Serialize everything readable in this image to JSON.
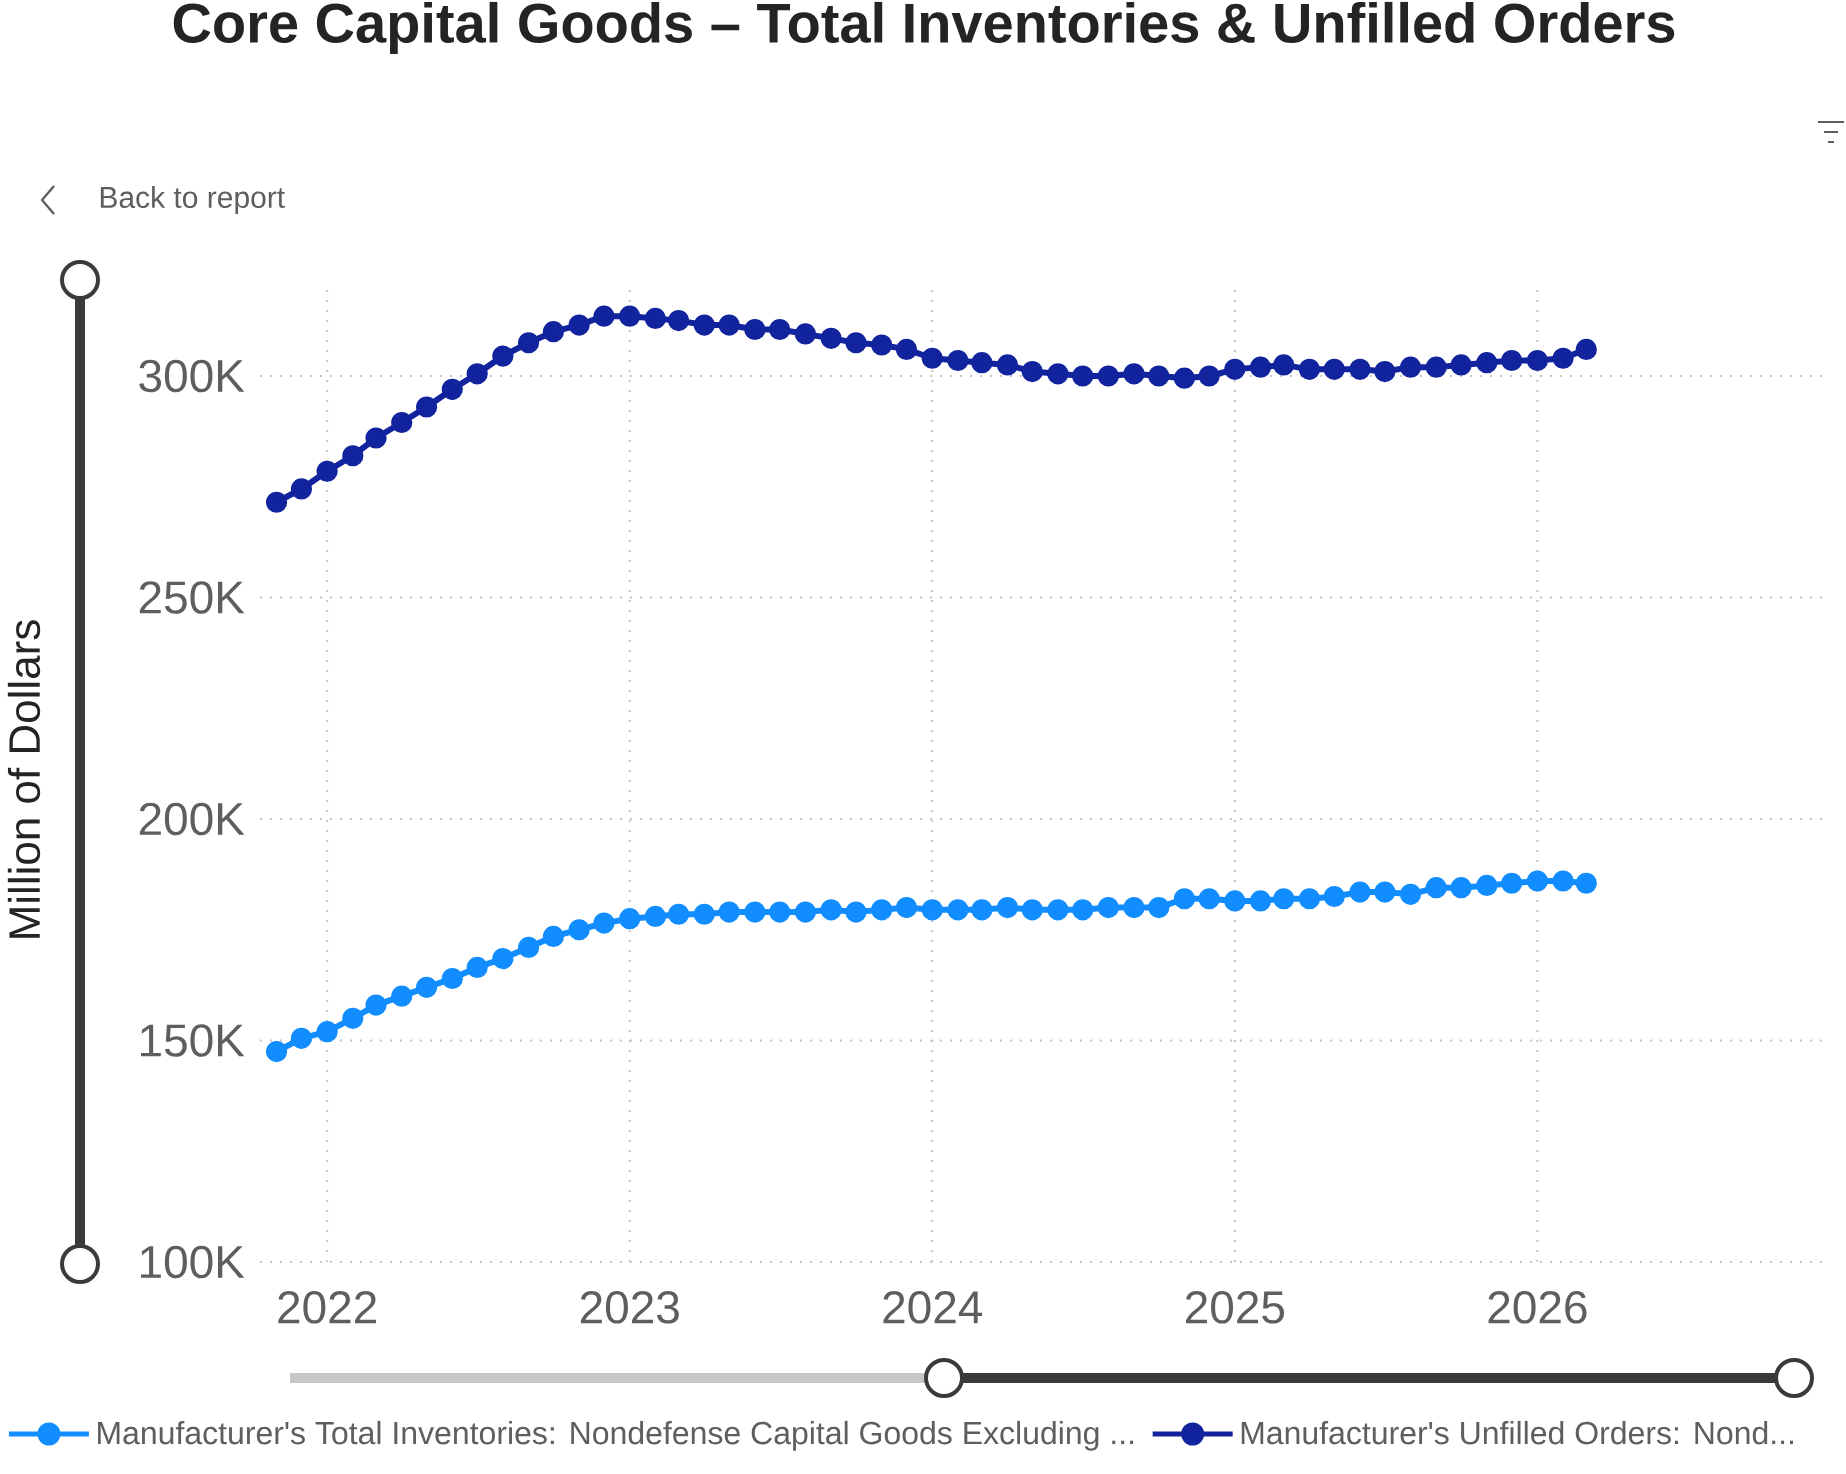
{
  "chart_data": {
    "type": "line",
    "title": "Core Capital Goods – Total Inventories & Unfilled Orders",
    "ylabel": "Million of Dollars",
    "annotations": [
      "Back to report"
    ],
    "x": [
      "2021-11",
      "2021-12",
      "2022-01",
      "2022-02",
      "2022-03",
      "2022-04",
      "2022-05",
      "2022-06",
      "2022-07",
      "2022-08",
      "2022-09",
      "2022-10",
      "2022-11",
      "2022-12",
      "2023-01",
      "2023-02",
      "2023-03",
      "2023-04",
      "2023-05",
      "2023-06",
      "2023-07",
      "2023-08",
      "2023-09",
      "2023-10",
      "2023-11",
      "2023-12",
      "2024-01",
      "2024-02",
      "2024-03",
      "2024-04",
      "2024-05",
      "2024-06",
      "2024-07",
      "2024-08",
      "2024-09",
      "2024-10",
      "2024-11",
      "2024-12",
      "2025-01",
      "2025-02",
      "2025-03",
      "2025-04",
      "2025-05",
      "2025-06",
      "2025-07",
      "2025-08",
      "2025-09",
      "2025-10",
      "2025-11",
      "2025-12",
      "2026-01",
      "2026-02",
      "2026-03"
    ],
    "xlim": [
      "2021-10-12",
      "2026-12-20"
    ],
    "xticks": [
      "2022",
      "2023",
      "2024",
      "2025",
      "2026"
    ],
    "ylim": [
      100000,
      320000
    ],
    "yticks": [
      {
        "value": 100000,
        "label": "100K"
      },
      {
        "value": 150000,
        "label": "150K"
      },
      {
        "value": 200000,
        "label": "200K"
      },
      {
        "value": 250000,
        "label": "250K"
      },
      {
        "value": 300000,
        "label": "300K"
      }
    ],
    "grid": true,
    "legend": "bottom",
    "marker": "circle",
    "line_style": "solid",
    "series": [
      {
        "name": "Manufacturer's Total Inventories: Nondefense Capital Goods Excluding ...",
        "color": "#118dff",
        "values": [
          147500,
          150500,
          152000,
          155000,
          158000,
          160000,
          162000,
          164000,
          166500,
          168500,
          171000,
          173500,
          175000,
          176500,
          177500,
          178000,
          178500,
          178500,
          179000,
          179000,
          179000,
          179000,
          179500,
          179000,
          179500,
          180000,
          179500,
          179500,
          179500,
          180000,
          179500,
          179500,
          179500,
          180000,
          180000,
          180000,
          182000,
          182000,
          181500,
          181500,
          182000,
          182000,
          182500,
          183500,
          183500,
          183000,
          184500,
          184500,
          185000,
          185500,
          186000,
          186000,
          185500
        ]
      },
      {
        "name": "Manufacturer's Unfilled Orders: Nond...",
        "color": "#12239e",
        "values": [
          271500,
          274500,
          278500,
          282000,
          286000,
          289500,
          293000,
          297000,
          300500,
          304500,
          307500,
          310000,
          311500,
          313500,
          313500,
          313000,
          312500,
          311500,
          311500,
          310500,
          310500,
          309500,
          308500,
          307500,
          307000,
          306000,
          304000,
          303500,
          303000,
          302500,
          301000,
          300500,
          300000,
          300000,
          300500,
          300000,
          299500,
          300000,
          301500,
          302000,
          302500,
          301500,
          301500,
          301500,
          301000,
          302000,
          302000,
          302500,
          303000,
          303500,
          303500,
          304000,
          306000
        ]
      }
    ]
  }
}
